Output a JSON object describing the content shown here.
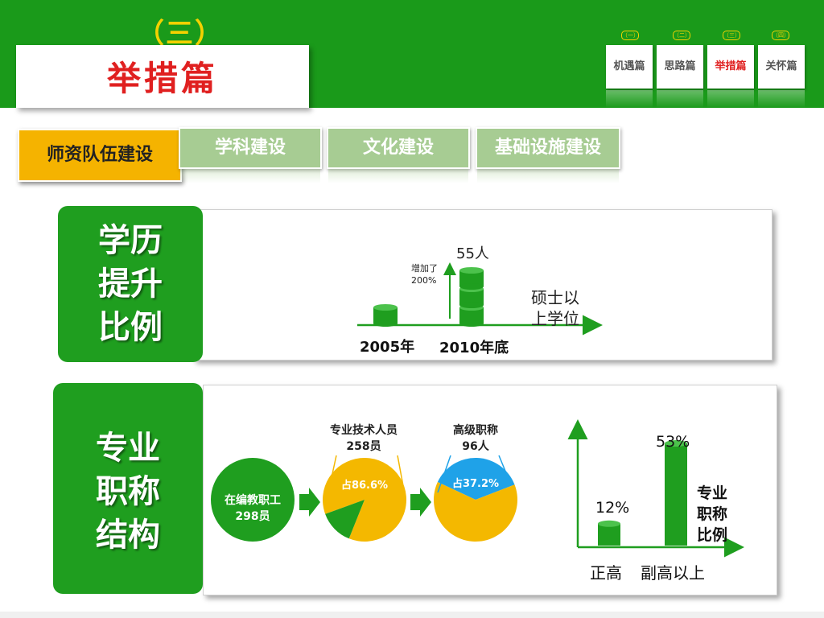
{
  "header": {
    "section_number": "（三）",
    "title": "举措篇",
    "nav": [
      {
        "number": "（一）",
        "label": "机遇篇",
        "active": false
      },
      {
        "number": "（二）",
        "label": "思路篇",
        "active": false
      },
      {
        "number": "（三）",
        "label": "举措篇",
        "active": true
      },
      {
        "number": "（四）",
        "label": "关怀篇",
        "active": false
      }
    ]
  },
  "subtabs": {
    "active": "师资队伍建设",
    "others": [
      "学科建设",
      "文化建设",
      "基础设施建设"
    ]
  },
  "education": {
    "label_lines": [
      "学历",
      "提升",
      "比例"
    ],
    "value_label": "55人",
    "increase_line1": "增加了",
    "increase_line2": "200%",
    "legend_line1": "硕士以",
    "legend_line2": "上学位",
    "x_labels": [
      "2005年",
      "2010年底"
    ]
  },
  "title_structure": {
    "label_lines": [
      "专业",
      "职称",
      "结构"
    ],
    "circle1_line1": "在编教职工",
    "circle1_line2": "298员",
    "pie2_title_line1": "专业技术人员",
    "pie2_title_line2": "258员",
    "pie2_slice_label": "占86.6%",
    "pie3_title_line1": "高级职称",
    "pie3_title_line2": "96人",
    "pie3_slice_label": "占37.2%",
    "bars_legend_lines": [
      "专业",
      "职称",
      "比例"
    ],
    "bars_x_labels": [
      "正高",
      "副高以上"
    ]
  },
  "chart_data": [
    {
      "type": "bar",
      "categories": [
        "2005年",
        "2010年底"
      ],
      "values": [
        1,
        3
      ],
      "value_unit": "stacked cylinder units",
      "annotations": [
        "55人",
        "增加了200%"
      ],
      "title": "",
      "xlabel": "",
      "ylabel": "硕士以上学位"
    },
    {
      "type": "pie",
      "title": "专业技术人员 258员",
      "slices": [
        {
          "label": "占86.6%",
          "value": 86.6
        },
        {
          "label": "",
          "value": 13.4
        }
      ]
    },
    {
      "type": "pie",
      "title": "高级职称 96人",
      "slices": [
        {
          "label": "占37.2%",
          "value": 37.2
        },
        {
          "label": "",
          "value": 62.8
        }
      ]
    },
    {
      "type": "bar",
      "categories": [
        "正高",
        "副高以上"
      ],
      "values": [
        12,
        53
      ],
      "value_labels": [
        "12%",
        "53%"
      ],
      "ylabel": "专业职称比例",
      "ylim": [
        0,
        60
      ]
    }
  ],
  "colors": {
    "green": "#1f9e1f",
    "header_green": "#1a9a1a",
    "yellow": "#f4b800",
    "blue": "#1fa2e8",
    "red": "#e02020",
    "tab_green": "#a7cc93"
  }
}
